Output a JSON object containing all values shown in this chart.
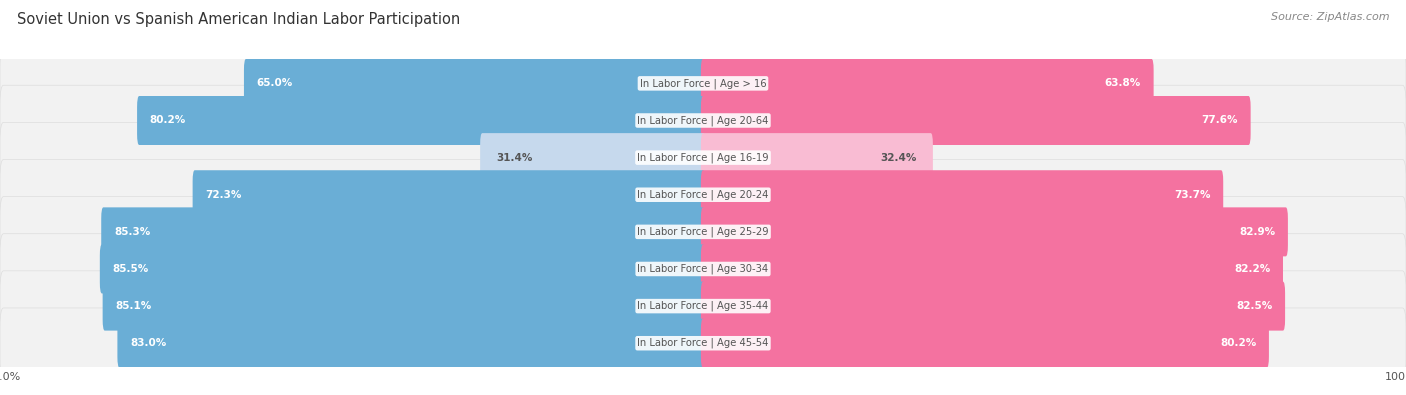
{
  "title": "Soviet Union vs Spanish American Indian Labor Participation",
  "source": "Source: ZipAtlas.com",
  "categories": [
    "In Labor Force | Age > 16",
    "In Labor Force | Age 20-64",
    "In Labor Force | Age 16-19",
    "In Labor Force | Age 20-24",
    "In Labor Force | Age 25-29",
    "In Labor Force | Age 30-34",
    "In Labor Force | Age 35-44",
    "In Labor Force | Age 45-54"
  ],
  "soviet_values": [
    65.0,
    80.2,
    31.4,
    72.3,
    85.3,
    85.5,
    85.1,
    83.0
  ],
  "spanish_values": [
    63.8,
    77.6,
    32.4,
    73.7,
    82.9,
    82.2,
    82.5,
    80.2
  ],
  "soviet_color_strong": "#6aaed6",
  "soviet_color_light": "#c6d9ed",
  "spanish_color_strong": "#f472a0",
  "spanish_color_light": "#f9bcd3",
  "bg_color": "#ffffff",
  "chart_bg_color": "#e8e8e8",
  "row_bg_color": "#f2f2f2",
  "row_bg_outline": "#dddddd",
  "label_white": "#ffffff",
  "label_dark": "#555555",
  "center_label_color": "#555555",
  "x_max": 100.0,
  "legend_soviet": "Soviet Union",
  "legend_spanish": "Spanish American Indian",
  "figsize": [
    14.06,
    3.95
  ],
  "dpi": 100,
  "threshold_white_label": 35.0
}
